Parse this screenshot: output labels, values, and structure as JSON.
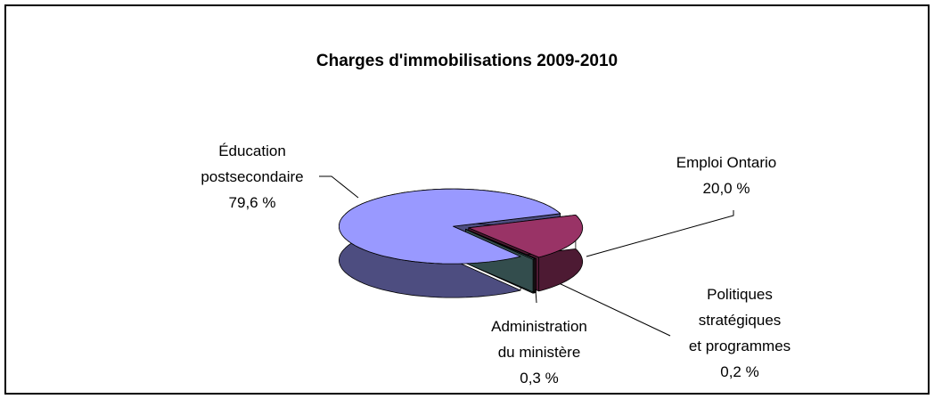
{
  "chart_data": {
    "type": "pie3d",
    "title": "Charges d'immobilisations 2009-2010",
    "categories": [
      "Emploi Ontario",
      "Politiques\nstratégiques\net programmes",
      "Administration\ndu ministère",
      "Éducation\npostsecondaire"
    ],
    "values": [
      20.0,
      0.2,
      0.3,
      79.6
    ],
    "value_labels": [
      "20,0 %",
      "0,2 %",
      "0,3 %",
      "79,6 %"
    ],
    "colors": [
      "#993366",
      "#333333",
      "#669999",
      "#9999ff"
    ]
  }
}
